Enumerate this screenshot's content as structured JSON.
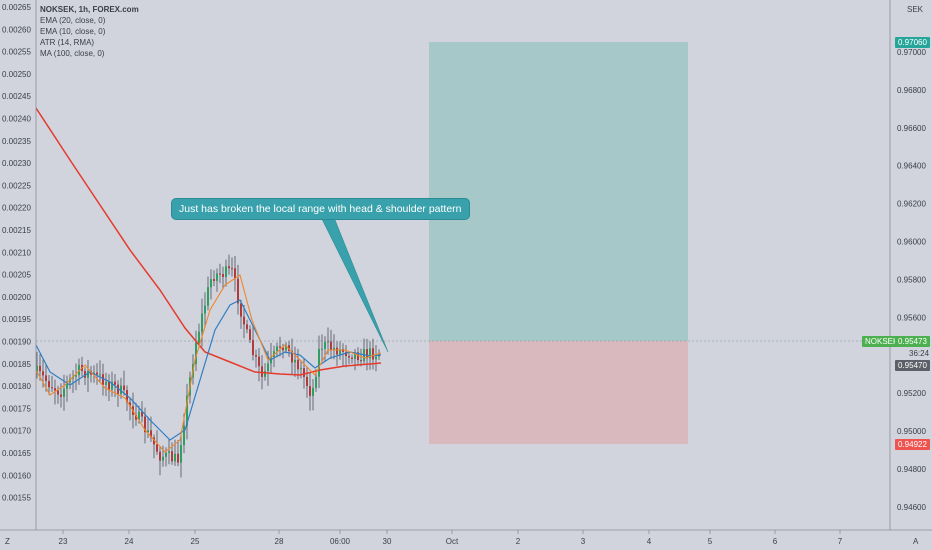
{
  "legend": {
    "title": "NOKSEK, 1h, FOREX.com",
    "ind1": "EMA (20, close, 0)",
    "ind2": "EMA (10, close, 0)",
    "ind3": "ATR (14, RMA)",
    "ind4": "MA (100, close, 0)"
  },
  "callout": "Just has broken the local range with head & shoulder pattern",
  "right_axis": {
    "currency": "SEK",
    "ticks": [
      "0.97000",
      "0.96800",
      "0.96600",
      "0.96400",
      "0.96200",
      "0.96000",
      "0.95800",
      "0.95600",
      "0.95200",
      "0.95000",
      "0.94800",
      "0.94600"
    ],
    "target_label": "0.97060",
    "symbol_label": "NOKSEK",
    "price_label": "0.95473",
    "countdown_label": "36:24",
    "price2_label": "0.95470",
    "stop_label": "0.94922"
  },
  "left_axis": {
    "ticks": [
      "0.00265",
      "0.00260",
      "0.00255",
      "0.00250",
      "0.00245",
      "0.00240",
      "0.00235",
      "0.00230",
      "0.00225",
      "0.00220",
      "0.00215",
      "0.00210",
      "0.00205",
      "0.00200",
      "0.00195",
      "0.00190",
      "0.00185",
      "0.00180",
      "0.00175",
      "0.00170",
      "0.00165",
      "0.00160",
      "0.00155"
    ]
  },
  "time_axis": {
    "ticks": [
      "23",
      "24",
      "25",
      "28",
      "06:00",
      "30",
      "Oct",
      "2",
      "3",
      "4",
      "5",
      "6",
      "7"
    ],
    "left_corner": "Z",
    "right_corner": "A"
  },
  "colors": {
    "background": "#d1d4dc",
    "ema20": "#2f7ec4",
    "ema10": "#f0862c",
    "ma100": "#e53a2c",
    "target_zone": "#a7c8c8",
    "stop_zone": "#d9b9bd",
    "target_tag": "#26a69a",
    "stop_tag": "#ef5350",
    "price_tag": "#4caf50"
  }
}
